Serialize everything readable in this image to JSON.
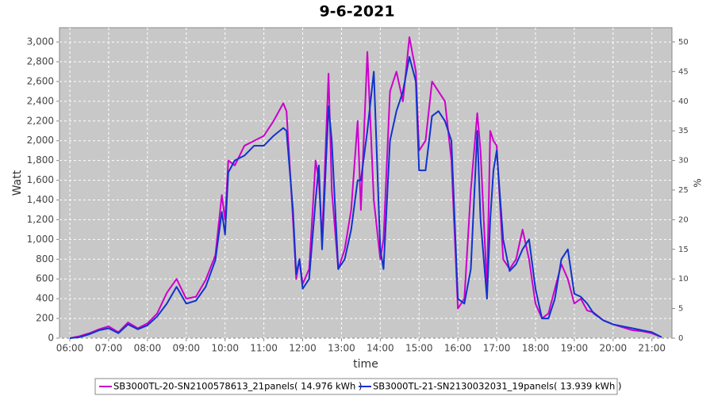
{
  "chart_data": {
    "type": "line",
    "title": "9-6-2021",
    "xlabel": "time",
    "ylabel": "Watt",
    "y2label": "%",
    "xlim": [
      "05:44",
      "21:31"
    ],
    "xticks": [
      "06:00",
      "07:00",
      "08:00",
      "09:00",
      "10:00",
      "11:00",
      "12:00",
      "13:00",
      "14:00",
      "15:00",
      "16:00",
      "17:00",
      "18:00",
      "19:00",
      "20:00",
      "21:00"
    ],
    "ylim": [
      0,
      3145
    ],
    "yticks": [
      0,
      200,
      400,
      600,
      800,
      {
        "value": 1000,
        "label": "1,000"
      },
      {
        "value": 1200,
        "label": "1,200"
      },
      {
        "value": 1400,
        "label": "1,400"
      },
      {
        "value": 1600,
        "label": "1,600"
      },
      {
        "value": 1800,
        "label": "1,800"
      },
      {
        "value": 2000,
        "label": "2,000"
      },
      {
        "value": 2200,
        "label": "2,200"
      },
      {
        "value": 2400,
        "label": "2,400"
      },
      {
        "value": 2600,
        "label": "2,600"
      },
      {
        "value": 2800,
        "label": "2,800"
      },
      {
        "value": 3000,
        "label": "3,000"
      }
    ],
    "y2lim": [
      0,
      52.4
    ],
    "y2ticks": [
      0,
      5,
      10,
      15,
      20,
      25,
      30,
      35,
      40,
      45,
      50
    ],
    "grid": true,
    "background": "#c8c8c8",
    "x": [
      "06:00",
      "06:15",
      "06:30",
      "06:45",
      "07:00",
      "07:15",
      "07:30",
      "07:45",
      "08:00",
      "08:15",
      "08:30",
      "08:45",
      "09:00",
      "09:15",
      "09:30",
      "09:45",
      "09:55",
      "10:00",
      "10:05",
      "10:15",
      "10:30",
      "10:45",
      "11:00",
      "11:15",
      "11:30",
      "11:35",
      "11:45",
      "11:50",
      "11:55",
      "12:00",
      "12:10",
      "12:20",
      "12:25",
      "12:30",
      "12:40",
      "12:45",
      "12:55",
      "13:05",
      "13:15",
      "13:25",
      "13:30",
      "13:40",
      "13:50",
      "14:00",
      "14:05",
      "14:15",
      "14:25",
      "14:35",
      "14:45",
      "14:55",
      "15:00",
      "15:10",
      "15:20",
      "15:30",
      "15:40",
      "15:50",
      "16:00",
      "16:10",
      "16:20",
      "16:30",
      "16:35",
      "16:45",
      "16:50",
      "16:55",
      "17:00",
      "17:10",
      "17:20",
      "17:30",
      "17:40",
      "17:50",
      "18:00",
      "18:10",
      "18:20",
      "18:30",
      "18:40",
      "18:50",
      "19:00",
      "19:10",
      "19:20",
      "19:30",
      "19:45",
      "20:00",
      "20:15",
      "20:30",
      "20:45",
      "21:00",
      "21:15"
    ],
    "series": [
      {
        "name": "SB3000TL-20-SN2100578613_21panels( 14.976 kWh )",
        "color": "#cc00cc",
        "values": [
          0,
          20,
          50,
          90,
          120,
          60,
          160,
          100,
          150,
          250,
          460,
          600,
          400,
          420,
          590,
          840,
          1450,
          1200,
          1800,
          1750,
          1950,
          2000,
          2050,
          2200,
          2380,
          2300,
          1200,
          600,
          800,
          550,
          700,
          1800,
          1600,
          1000,
          2680,
          1500,
          700,
          900,
          1300,
          2200,
          1300,
          2900,
          1400,
          800,
          1000,
          2500,
          2700,
          2400,
          3050,
          2700,
          1900,
          2000,
          2600,
          2500,
          2400,
          1800,
          300,
          400,
          1500,
          2280,
          1900,
          500,
          2100,
          2000,
          1950,
          800,
          700,
          800,
          1100,
          800,
          350,
          200,
          250,
          500,
          750,
          600,
          350,
          400,
          280,
          260,
          180,
          140,
          110,
          80,
          70,
          50,
          10
        ]
      },
      {
        "name": "SB3000TL-21-SN2130032031_19panels( 13.939 kWh )",
        "color": "#1133cc",
        "values": [
          0,
          10,
          40,
          80,
          100,
          50,
          140,
          90,
          130,
          220,
          350,
          520,
          350,
          380,
          520,
          790,
          1280,
          1050,
          1680,
          1800,
          1850,
          1950,
          1950,
          2050,
          2130,
          2100,
          1300,
          650,
          800,
          500,
          600,
          1400,
          1750,
          900,
          2350,
          2000,
          700,
          800,
          1100,
          1600,
          1600,
          2100,
          2700,
          900,
          700,
          2000,
          2300,
          2500,
          2850,
          2600,
          1700,
          1700,
          2250,
          2300,
          2200,
          2000,
          400,
          350,
          700,
          2100,
          1200,
          400,
          1200,
          1700,
          1900,
          1000,
          680,
          750,
          900,
          1000,
          500,
          200,
          200,
          400,
          800,
          900,
          450,
          420,
          350,
          250,
          180,
          140,
          120,
          100,
          80,
          60,
          10
        ]
      }
    ]
  }
}
